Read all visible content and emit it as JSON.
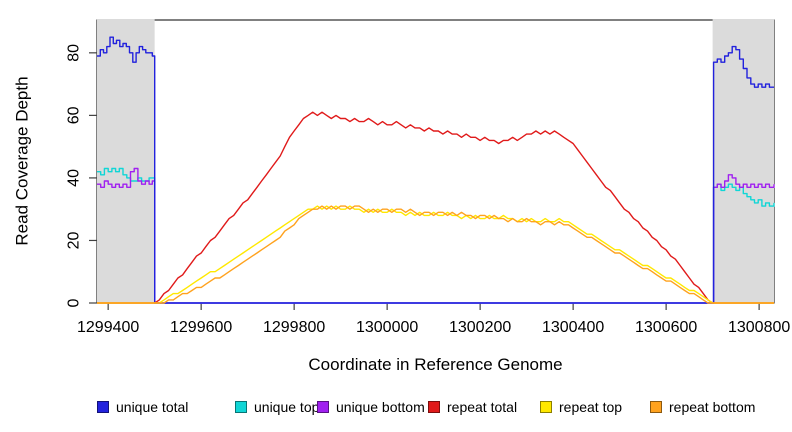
{
  "chart_data": {
    "type": "line",
    "title": "",
    "xlabel": "Coordinate in Reference Genome",
    "ylabel": "Read Coverage Depth",
    "xlim": [
      1299376,
      1300832
    ],
    "ylim": [
      0,
      90.5
    ],
    "x_ticks": [
      1299400,
      1299600,
      1299800,
      1300000,
      1300200,
      1300400,
      1300600,
      1300800
    ],
    "y_ticks": [
      0,
      20,
      40,
      60,
      80
    ],
    "grid": false,
    "legend_position": "bottom",
    "plot_bg": "#ffffff",
    "shaded_regions": [
      {
        "x0": 1299376,
        "x1": 1299500,
        "color": "#DBDBDB"
      },
      {
        "x0": 1300700,
        "x1": 1300832,
        "color": "#DBDBDB"
      }
    ],
    "series": [
      {
        "name": "unique total",
        "color": "#2222DD",
        "draw": "step",
        "z": 3,
        "points": [
          [
            1299376,
            79
          ],
          [
            1299383,
            81
          ],
          [
            1299390,
            80
          ],
          [
            1299397,
            82
          ],
          [
            1299404,
            85
          ],
          [
            1299411,
            83
          ],
          [
            1299418,
            84
          ],
          [
            1299425,
            82
          ],
          [
            1299432,
            83
          ],
          [
            1299439,
            82
          ],
          [
            1299446,
            80
          ],
          [
            1299453,
            77
          ],
          [
            1299460,
            80
          ],
          [
            1299467,
            82
          ],
          [
            1299474,
            81
          ],
          [
            1299481,
            80
          ],
          [
            1299488,
            80
          ],
          [
            1299495,
            79
          ],
          [
            1299500,
            0
          ],
          [
            1300702,
            77
          ],
          [
            1300710,
            78
          ],
          [
            1300718,
            77
          ],
          [
            1300726,
            79
          ],
          [
            1300734,
            80
          ],
          [
            1300742,
            82
          ],
          [
            1300750,
            81
          ],
          [
            1300758,
            78
          ],
          [
            1300766,
            75
          ],
          [
            1300774,
            72
          ],
          [
            1300782,
            70
          ],
          [
            1300790,
            69
          ],
          [
            1300798,
            70
          ],
          [
            1300806,
            69
          ],
          [
            1300814,
            70
          ],
          [
            1300822,
            69
          ],
          [
            1300832,
            69
          ]
        ]
      },
      {
        "name": "unique top",
        "color": "#10D6D6",
        "draw": "step",
        "z": 1,
        "points": [
          [
            1299376,
            42
          ],
          [
            1299384,
            41
          ],
          [
            1299392,
            43
          ],
          [
            1299400,
            42
          ],
          [
            1299408,
            43
          ],
          [
            1299416,
            42
          ],
          [
            1299424,
            43
          ],
          [
            1299432,
            41
          ],
          [
            1299440,
            40
          ],
          [
            1299448,
            39
          ],
          [
            1299456,
            39
          ],
          [
            1299464,
            40
          ],
          [
            1299472,
            39
          ],
          [
            1299480,
            39
          ],
          [
            1299488,
            40
          ],
          [
            1299495,
            40
          ],
          [
            1299500,
            0
          ],
          [
            1300702,
            37
          ],
          [
            1300710,
            38
          ],
          [
            1300718,
            36
          ],
          [
            1300726,
            37
          ],
          [
            1300734,
            38
          ],
          [
            1300742,
            37
          ],
          [
            1300750,
            36
          ],
          [
            1300758,
            37
          ],
          [
            1300766,
            35
          ],
          [
            1300774,
            34
          ],
          [
            1300782,
            33
          ],
          [
            1300790,
            32
          ],
          [
            1300798,
            33
          ],
          [
            1300806,
            31
          ],
          [
            1300814,
            32
          ],
          [
            1300822,
            31
          ],
          [
            1300832,
            32
          ]
        ]
      },
      {
        "name": "unique bottom",
        "color": "#A020F0",
        "draw": "step",
        "z": 2,
        "points": [
          [
            1299376,
            38
          ],
          [
            1299384,
            37
          ],
          [
            1299392,
            39
          ],
          [
            1299400,
            38
          ],
          [
            1299408,
            37
          ],
          [
            1299416,
            38
          ],
          [
            1299424,
            37
          ],
          [
            1299432,
            38
          ],
          [
            1299440,
            37
          ],
          [
            1299448,
            42
          ],
          [
            1299456,
            43
          ],
          [
            1299464,
            39
          ],
          [
            1299472,
            38
          ],
          [
            1299480,
            39
          ],
          [
            1299488,
            38
          ],
          [
            1299495,
            39
          ],
          [
            1299500,
            0
          ],
          [
            1300702,
            37
          ],
          [
            1300710,
            38
          ],
          [
            1300718,
            37
          ],
          [
            1300726,
            39
          ],
          [
            1300734,
            41
          ],
          [
            1300742,
            40
          ],
          [
            1300750,
            38
          ],
          [
            1300758,
            37
          ],
          [
            1300766,
            38
          ],
          [
            1300774,
            37
          ],
          [
            1300782,
            38
          ],
          [
            1300790,
            37
          ],
          [
            1300798,
            38
          ],
          [
            1300806,
            37
          ],
          [
            1300814,
            38
          ],
          [
            1300822,
            37
          ],
          [
            1300832,
            38
          ]
        ]
      },
      {
        "name": "repeat total",
        "color": "#E01A1A",
        "draw": "line",
        "z": 4,
        "pre": [
          [
            1299376,
            0
          ]
        ],
        "post": [
          [
            1300832,
            0
          ]
        ],
        "run": {
          "x_start": 1299500,
          "x_step": 10,
          "values": [
            0,
            1,
            3,
            4,
            6,
            8,
            9,
            11,
            13,
            15,
            16,
            18,
            20,
            21,
            23,
            25,
            27,
            28,
            30,
            32,
            33,
            35,
            37,
            39,
            41,
            43,
            45,
            47,
            50,
            53,
            55,
            57,
            59,
            60,
            61,
            60,
            61,
            60,
            59,
            60,
            59,
            59,
            58,
            59,
            58,
            58,
            59,
            58,
            57,
            58,
            57,
            57,
            58,
            57,
            56,
            57,
            56,
            56,
            55,
            56,
            55,
            55,
            54,
            55,
            54,
            54,
            53,
            54,
            53,
            53,
            52,
            53,
            52,
            52,
            51,
            52,
            52,
            53,
            52,
            53,
            54,
            54,
            55,
            54,
            55,
            54,
            55,
            54,
            53,
            52,
            51,
            49,
            47,
            45,
            43,
            41,
            39,
            37,
            36,
            34,
            32,
            30,
            29,
            27,
            26,
            24,
            23,
            21,
            20,
            18,
            17,
            15,
            14,
            12,
            10,
            8,
            6,
            5,
            3,
            1,
            0
          ]
        }
      },
      {
        "name": "repeat top",
        "color": "#FFE800",
        "draw": "line",
        "z": 5,
        "pre": [
          [
            1299376,
            0
          ]
        ],
        "post": [
          [
            1300832,
            0
          ]
        ],
        "run": {
          "x_start": 1299500,
          "x_step": 10,
          "values": [
            0,
            0,
            1,
            2,
            3,
            3,
            4,
            5,
            6,
            7,
            8,
            9,
            10,
            10,
            11,
            12,
            13,
            14,
            15,
            16,
            17,
            18,
            19,
            20,
            21,
            22,
            23,
            24,
            25,
            26,
            27,
            28,
            29,
            30,
            30,
            31,
            30,
            31,
            30,
            31,
            30,
            30,
            31,
            30,
            30,
            29,
            30,
            29,
            30,
            29,
            29,
            30,
            29,
            29,
            28,
            29,
            28,
            29,
            28,
            28,
            29,
            28,
            28,
            29,
            28,
            28,
            27,
            28,
            27,
            28,
            27,
            27,
            28,
            27,
            27,
            28,
            27,
            27,
            26,
            27,
            26,
            27,
            26,
            26,
            27,
            26,
            26,
            27,
            26,
            26,
            25,
            24,
            23,
            22,
            22,
            21,
            20,
            19,
            18,
            17,
            17,
            16,
            15,
            14,
            13,
            12,
            12,
            11,
            10,
            9,
            8,
            8,
            7,
            6,
            5,
            4,
            4,
            3,
            2,
            1,
            0
          ]
        }
      },
      {
        "name": "repeat bottom",
        "color": "#FFA21E",
        "draw": "line",
        "z": 6,
        "pre": [
          [
            1299376,
            0
          ]
        ],
        "post": [
          [
            1300832,
            0
          ]
        ],
        "run": {
          "x_start": 1299500,
          "x_step": 10,
          "values": [
            0,
            0,
            0,
            1,
            1,
            2,
            3,
            3,
            4,
            5,
            5,
            6,
            7,
            8,
            8,
            9,
            10,
            11,
            12,
            13,
            14,
            15,
            16,
            17,
            18,
            19,
            20,
            21,
            23,
            24,
            25,
            27,
            28,
            29,
            30,
            30,
            31,
            30,
            31,
            30,
            31,
            31,
            30,
            31,
            31,
            30,
            29,
            30,
            29,
            30,
            30,
            29,
            30,
            30,
            29,
            30,
            29,
            28,
            29,
            29,
            28,
            29,
            29,
            28,
            29,
            28,
            29,
            28,
            28,
            27,
            28,
            28,
            27,
            28,
            27,
            27,
            26,
            27,
            26,
            26,
            27,
            26,
            26,
            25,
            26,
            26,
            25,
            26,
            25,
            25,
            24,
            23,
            22,
            21,
            21,
            20,
            19,
            18,
            17,
            16,
            16,
            15,
            14,
            13,
            12,
            11,
            11,
            10,
            9,
            8,
            7,
            7,
            6,
            5,
            4,
            3,
            3,
            2,
            1,
            0,
            0
          ]
        }
      }
    ]
  }
}
